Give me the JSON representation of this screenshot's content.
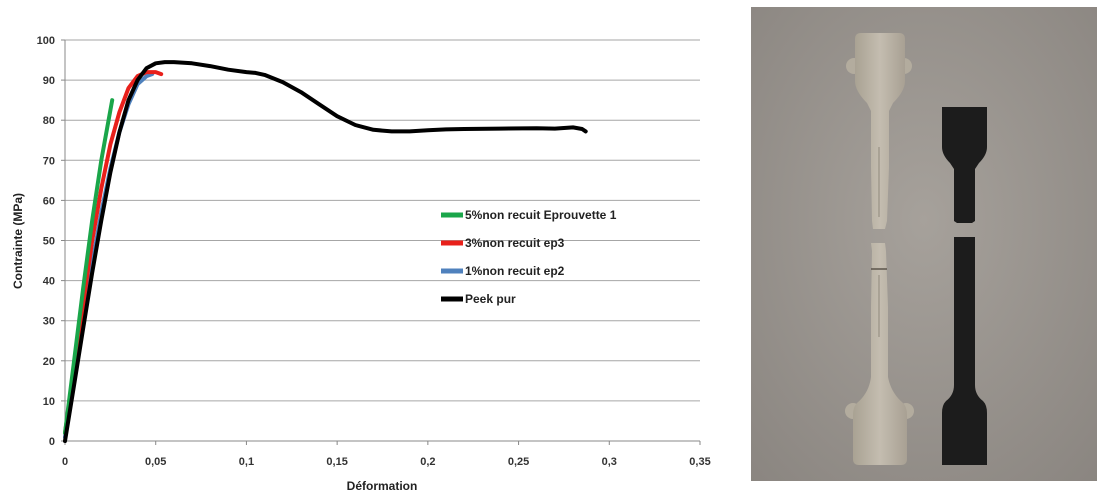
{
  "chart_data": {
    "type": "line",
    "title": "",
    "xlabel": "Déformation",
    "ylabel": "Contrainte (MPa)",
    "xlim": [
      0,
      0.35
    ],
    "ylim": [
      0,
      100
    ],
    "x_ticks": [
      0,
      0.05,
      0.1,
      0.15,
      0.2,
      0.25,
      0.3,
      0.35
    ],
    "x_tick_labels": [
      "0",
      "0,05",
      "0,1",
      "0,15",
      "0,2",
      "0,25",
      "0,3",
      "0,35"
    ],
    "y_ticks": [
      0,
      10,
      20,
      30,
      40,
      50,
      60,
      70,
      80,
      90,
      100
    ],
    "y_tick_labels": [
      "0",
      "10",
      "20",
      "30",
      "40",
      "50",
      "60",
      "70",
      "80",
      "90",
      "100"
    ],
    "grid": "horizontal",
    "legend_position": "center-right",
    "series": [
      {
        "name": "5%non recuit Eprouvette 1",
        "color": "#1aa64a",
        "points": [
          [
            0,
            2
          ],
          [
            0.005,
            20
          ],
          [
            0.01,
            38
          ],
          [
            0.015,
            55
          ],
          [
            0.02,
            70
          ],
          [
            0.026,
            85
          ]
        ]
      },
      {
        "name": "3%non recuit ep3",
        "color": "#e8201b",
        "points": [
          [
            0,
            2
          ],
          [
            0.005,
            18
          ],
          [
            0.01,
            34
          ],
          [
            0.015,
            50
          ],
          [
            0.02,
            63
          ],
          [
            0.025,
            74
          ],
          [
            0.03,
            82
          ],
          [
            0.035,
            88
          ],
          [
            0.04,
            91
          ],
          [
            0.045,
            92
          ],
          [
            0.05,
            92
          ],
          [
            0.053,
            91.5
          ]
        ]
      },
      {
        "name": "1%non recuit ep2",
        "color": "#4f81bd",
        "points": [
          [
            0,
            1
          ],
          [
            0.005,
            15
          ],
          [
            0.01,
            30
          ],
          [
            0.015,
            44
          ],
          [
            0.02,
            57
          ],
          [
            0.025,
            68
          ],
          [
            0.03,
            77
          ],
          [
            0.035,
            84
          ],
          [
            0.04,
            89
          ],
          [
            0.045,
            91
          ],
          [
            0.048,
            91.5
          ]
        ]
      },
      {
        "name": "Peek pur",
        "color": "#000000",
        "points": [
          [
            0,
            0
          ],
          [
            0.005,
            14
          ],
          [
            0.01,
            28
          ],
          [
            0.015,
            42
          ],
          [
            0.02,
            55
          ],
          [
            0.025,
            67
          ],
          [
            0.03,
            77
          ],
          [
            0.035,
            85
          ],
          [
            0.04,
            90
          ],
          [
            0.045,
            93
          ],
          [
            0.05,
            94.2
          ],
          [
            0.055,
            94.5
          ],
          [
            0.06,
            94.5
          ],
          [
            0.07,
            94.2
          ],
          [
            0.08,
            93.5
          ],
          [
            0.09,
            92.6
          ],
          [
            0.1,
            92
          ],
          [
            0.105,
            91.8
          ],
          [
            0.11,
            91.3
          ],
          [
            0.12,
            89.5
          ],
          [
            0.13,
            87
          ],
          [
            0.14,
            84
          ],
          [
            0.15,
            81
          ],
          [
            0.16,
            78.8
          ],
          [
            0.17,
            77.6
          ],
          [
            0.18,
            77.2
          ],
          [
            0.19,
            77.2
          ],
          [
            0.2,
            77.5
          ],
          [
            0.21,
            77.7
          ],
          [
            0.22,
            77.8
          ],
          [
            0.24,
            77.9
          ],
          [
            0.26,
            78
          ],
          [
            0.27,
            77.9
          ],
          [
            0.28,
            78.2
          ],
          [
            0.285,
            77.8
          ],
          [
            0.287,
            77.2
          ]
        ]
      }
    ]
  },
  "photo": {
    "background": "#9b9690",
    "left_specimen_color": "#bdb6a8",
    "right_specimen_color": "#1a1a1a"
  }
}
